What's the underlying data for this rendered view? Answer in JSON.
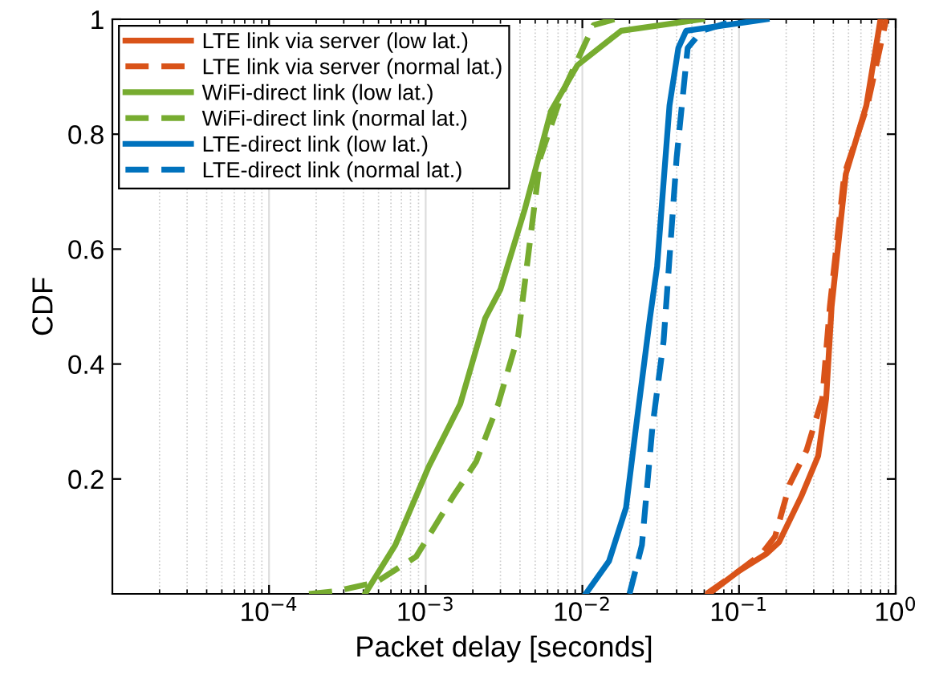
{
  "chart_data": {
    "type": "line",
    "xlabel": "Packet delay [seconds]",
    "ylabel": "CDF",
    "log": "x",
    "grid": "x",
    "legend": "top left",
    "marker": "none",
    "xlim": [
      1e-05,
      1
    ],
    "xticks": [
      {
        "value": 0.0001,
        "label": "10$^{−4}$"
      },
      {
        "value": 0.001,
        "label": "10$^{−3}$"
      },
      {
        "value": 0.01,
        "label": "10$^{−2}$"
      },
      {
        "value": 0.1,
        "label": "10$^{−1}$"
      },
      {
        "value": 1,
        "label": "10$^{0}$"
      }
    ],
    "ylim": [
      0,
      1
    ],
    "yticks": [
      0.2,
      0.4,
      0.6,
      0.8,
      1
    ],
    "series": [
      {
        "name": "LTE link via server (low lat.)",
        "color": "#d95319",
        "line_style": "solid",
        "x": [
          0.064,
          0.1,
          0.15,
          0.18,
          0.25,
          0.32,
          0.36,
          0.39,
          0.48,
          0.65,
          0.8
        ],
        "values": [
          0,
          0.04,
          0.07,
          0.09,
          0.17,
          0.24,
          0.34,
          0.5,
          0.73,
          0.85,
          1.0
        ]
      },
      {
        "name": "LTE link via server (normal lat.)",
        "color": "#d95319",
        "line_style": "dashed",
        "x": [
          0.062,
          0.1,
          0.14,
          0.17,
          0.21,
          0.27,
          0.34,
          0.38,
          0.47,
          0.66,
          0.87
        ],
        "values": [
          0,
          0.04,
          0.07,
          0.1,
          0.19,
          0.25,
          0.34,
          0.5,
          0.73,
          0.85,
          1.0
        ]
      },
      {
        "name": "WiFi-direct link (low lat.)",
        "color": "#77ac30",
        "line_style": "solid",
        "x": [
          0.00041,
          0.00064,
          0.00104,
          0.00166,
          0.0024,
          0.003,
          0.0043,
          0.0063,
          0.0093,
          0.0177,
          0.058
        ],
        "values": [
          0,
          0.085,
          0.22,
          0.33,
          0.48,
          0.53,
          0.67,
          0.84,
          0.92,
          0.98,
          1.0
        ]
      },
      {
        "name": "WiFi-direct link (normal lat.)",
        "color": "#77ac30",
        "line_style": "dashed",
        "x": [
          0.00018,
          0.00027,
          0.00048,
          0.00087,
          0.0015,
          0.0021,
          0.0029,
          0.0039,
          0.0054,
          0.0074,
          0.0118,
          0.016
        ],
        "values": [
          0,
          0.005,
          0.02,
          0.065,
          0.17,
          0.23,
          0.33,
          0.45,
          0.76,
          0.87,
          0.99,
          1.0
        ]
      },
      {
        "name": "LTE-direct link (low lat.)",
        "color": "#0072bd",
        "line_style": "solid",
        "x": [
          0.0105,
          0.0148,
          0.019,
          0.022,
          0.027,
          0.03,
          0.036,
          0.041,
          0.046,
          0.15
        ],
        "values": [
          0,
          0.057,
          0.15,
          0.29,
          0.48,
          0.57,
          0.85,
          0.95,
          0.98,
          1.0
        ]
      },
      {
        "name": "LTE-direct link (normal lat.)",
        "color": "#0072bd",
        "line_style": "dashed",
        "x": [
          0.02,
          0.024,
          0.028,
          0.033,
          0.04,
          0.047,
          0.058,
          0.1
        ],
        "values": [
          0,
          0.085,
          0.29,
          0.44,
          0.76,
          0.95,
          0.98,
          1.0
        ]
      }
    ]
  }
}
